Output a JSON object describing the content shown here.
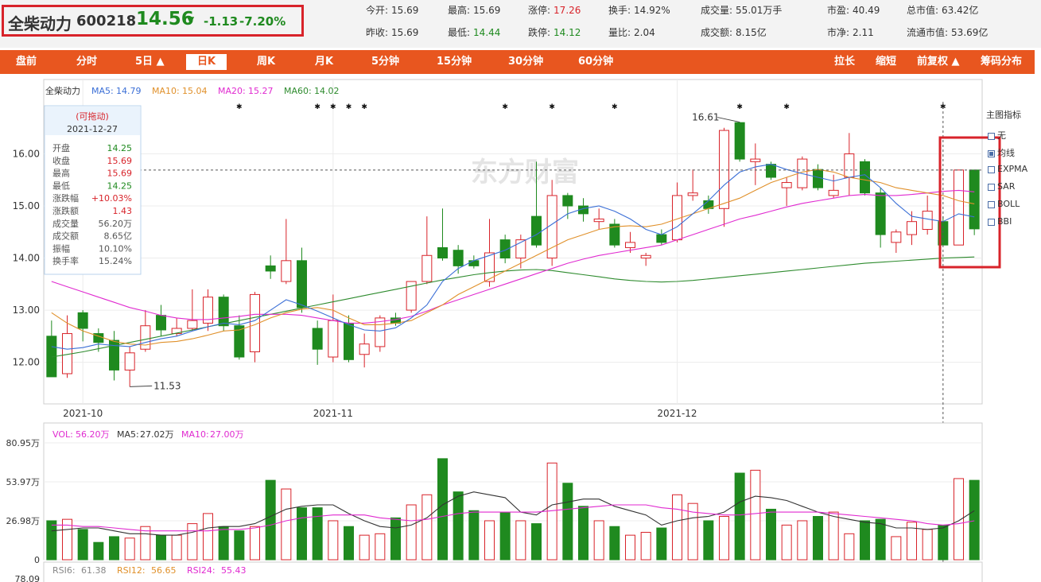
{
  "quote": {
    "name": "全柴动力",
    "code": "600218",
    "price": "14.56",
    "arrow": "▼",
    "change": "-1.13",
    "change_pct": "-7.20%"
  },
  "stats_row1": [
    {
      "label": "今开:",
      "value": "15.69",
      "tone": ""
    },
    {
      "label": "最高:",
      "value": "15.69",
      "tone": ""
    },
    {
      "label": "涨停:",
      "value": "17.26",
      "tone": "up"
    },
    {
      "label": "换手:",
      "value": "14.92%",
      "tone": ""
    },
    {
      "label": "成交量:",
      "value": "55.01万手",
      "tone": ""
    },
    {
      "label": "市盈:",
      "value": "40.49",
      "tone": ""
    },
    {
      "label": "总市值:",
      "value": "63.42亿",
      "tone": ""
    }
  ],
  "stats_row2": [
    {
      "label": "昨收:",
      "value": "15.69",
      "tone": ""
    },
    {
      "label": "最低:",
      "value": "14.44",
      "tone": "dn"
    },
    {
      "label": "跌停:",
      "value": "14.12",
      "tone": "dn"
    },
    {
      "label": "量比:",
      "value": "2.04",
      "tone": ""
    },
    {
      "label": "成交额:",
      "value": "8.15亿",
      "tone": ""
    },
    {
      "label": "市净:",
      "value": "2.11",
      "tone": ""
    },
    {
      "label": "流通市值:",
      "value": "53.69亿",
      "tone": ""
    }
  ],
  "toolbar": {
    "items": [
      "盘前",
      "分时",
      "5日 ▲",
      "日K",
      "周K",
      "月K",
      "5分钟",
      "15分钟",
      "30分钟",
      "60分钟"
    ],
    "active": "日K",
    "right_items": [
      "拉长",
      "缩短",
      "前复权 ▲",
      "筹码分布"
    ]
  },
  "indicator_panel": {
    "title": "主图指标",
    "options": [
      {
        "label": "无",
        "checked": false
      },
      {
        "label": "均线",
        "checked": true
      },
      {
        "label": "EXPMA",
        "checked": false
      },
      {
        "label": "SAR",
        "checked": false
      },
      {
        "label": "BOLL",
        "checked": false
      },
      {
        "label": "BBI",
        "checked": false
      }
    ]
  },
  "tooltip": {
    "title": "(可拖动)",
    "date": "2021-12-27",
    "rows": [
      {
        "label": "开盘",
        "value": "14.25",
        "tone": "dn"
      },
      {
        "label": "收盘",
        "value": "15.69",
        "tone": "up"
      },
      {
        "label": "最高",
        "value": "15.69",
        "tone": "up"
      },
      {
        "label": "最低",
        "value": "14.25",
        "tone": "dn"
      },
      {
        "label": "涨跌幅",
        "value": "+10.03%",
        "tone": "up"
      },
      {
        "label": "涨跌额",
        "value": "1.43",
        "tone": "up"
      },
      {
        "label": "成交量",
        "value": "56.20万",
        "tone": ""
      },
      {
        "label": "成交额",
        "value": "8.65亿",
        "tone": ""
      },
      {
        "label": "振幅",
        "value": "10.10%",
        "tone": ""
      },
      {
        "label": "换手率",
        "value": "15.24%",
        "tone": ""
      }
    ]
  },
  "watermark": "东方财富",
  "colors": {
    "up": "#d8232a",
    "down": "#1f8a1f",
    "ma5": "#3b6fd6",
    "ma10": "#e0902a",
    "ma20": "#e02ad0",
    "ma60": "#2e8b2e",
    "highlight": "#d8232a",
    "toolbar": "#e8561f"
  },
  "chart_data": [
    {
      "type": "candlestick",
      "title": "",
      "legend": [
        {
          "name": "全柴动力",
          "value": ""
        },
        {
          "name": "MA5",
          "value": "14.79"
        },
        {
          "name": "MA10",
          "value": "15.04"
        },
        {
          "name": "MA20",
          "value": "15.27"
        },
        {
          "name": "MA60",
          "value": "14.02"
        }
      ],
      "ylim": [
        11.2,
        17.0
      ],
      "yticks": [
        12.0,
        13.0,
        14.0,
        15.0,
        16.0
      ],
      "ytick_labels": [
        "12.00",
        "13.00",
        "14.00",
        "15.00",
        "16.00"
      ],
      "x_labels": [
        {
          "index": 2,
          "label": "2021-10"
        },
        {
          "index": 18,
          "label": "2021-11"
        },
        {
          "index": 40,
          "label": "2021-12"
        }
      ],
      "grid": true,
      "annotations": [
        {
          "index": 5,
          "value": 11.53,
          "label": "11.53"
        },
        {
          "index": 44,
          "value": 16.61,
          "label": "16.61"
        }
      ],
      "star_markers": [
        12,
        17,
        18,
        19,
        20,
        29,
        32,
        36,
        44,
        47,
        57
      ],
      "crosshair_index": 57,
      "crosshair_price": 15.69,
      "candles": [
        {
          "o": 12.5,
          "c": 11.72,
          "h": 12.8,
          "l": 11.72
        },
        {
          "o": 11.78,
          "c": 12.55,
          "h": 12.9,
          "l": 11.7
        },
        {
          "o": 12.95,
          "c": 12.65,
          "h": 13.0,
          "l": 12.4
        },
        {
          "o": 12.55,
          "c": 12.38,
          "h": 12.65,
          "l": 12.2
        },
        {
          "o": 12.42,
          "c": 11.85,
          "h": 12.6,
          "l": 11.65
        },
        {
          "o": 11.85,
          "c": 12.18,
          "h": 12.3,
          "l": 11.53
        },
        {
          "o": 12.25,
          "c": 12.7,
          "h": 13.0,
          "l": 12.2
        },
        {
          "o": 12.9,
          "c": 12.62,
          "h": 13.1,
          "l": 12.5
        },
        {
          "o": 12.55,
          "c": 12.65,
          "h": 12.85,
          "l": 12.5
        },
        {
          "o": 12.65,
          "c": 12.8,
          "h": 13.4,
          "l": 12.6
        },
        {
          "o": 12.75,
          "c": 13.25,
          "h": 13.4,
          "l": 12.6
        },
        {
          "o": 13.25,
          "c": 12.7,
          "h": 13.3,
          "l": 12.6
        },
        {
          "o": 12.7,
          "c": 12.1,
          "h": 12.9,
          "l": 12.05
        },
        {
          "o": 12.2,
          "c": 13.3,
          "h": 13.35,
          "l": 12.0
        },
        {
          "o": 13.85,
          "c": 13.75,
          "h": 14.05,
          "l": 13.6
        },
        {
          "o": 13.55,
          "c": 13.95,
          "h": 14.75,
          "l": 13.5
        },
        {
          "o": 13.95,
          "c": 13.05,
          "h": 14.2,
          "l": 12.95
        },
        {
          "o": 12.65,
          "c": 12.25,
          "h": 12.8,
          "l": 11.95
        },
        {
          "o": 12.1,
          "c": 12.8,
          "h": 13.3,
          "l": 12.0
        },
        {
          "o": 12.75,
          "c": 12.05,
          "h": 12.9,
          "l": 12.0
        },
        {
          "o": 12.15,
          "c": 12.35,
          "h": 12.55,
          "l": 11.9
        },
        {
          "o": 12.3,
          "c": 12.85,
          "h": 12.9,
          "l": 12.2
        },
        {
          "o": 12.85,
          "c": 12.75,
          "h": 12.95,
          "l": 12.7
        },
        {
          "o": 13.0,
          "c": 13.55,
          "h": 13.55,
          "l": 12.95
        },
        {
          "o": 13.55,
          "c": 14.05,
          "h": 14.8,
          "l": 13.5
        },
        {
          "o": 14.2,
          "c": 14.0,
          "h": 14.95,
          "l": 13.95
        },
        {
          "o": 14.15,
          "c": 13.85,
          "h": 14.25,
          "l": 13.7
        },
        {
          "o": 13.95,
          "c": 13.85,
          "h": 14.05,
          "l": 13.8
        },
        {
          "o": 13.55,
          "c": 14.1,
          "h": 14.75,
          "l": 13.45
        },
        {
          "o": 14.35,
          "c": 14.0,
          "h": 14.45,
          "l": 13.9
        },
        {
          "o": 14.0,
          "c": 14.35,
          "h": 14.45,
          "l": 13.8
        },
        {
          "o": 14.8,
          "c": 14.25,
          "h": 15.85,
          "l": 14.2
        },
        {
          "o": 14.0,
          "c": 15.2,
          "h": 15.5,
          "l": 13.85
        },
        {
          "o": 15.2,
          "c": 15.0,
          "h": 15.25,
          "l": 14.75
        },
        {
          "o": 15.0,
          "c": 14.85,
          "h": 15.15,
          "l": 14.7
        },
        {
          "o": 14.7,
          "c": 14.75,
          "h": 14.95,
          "l": 14.55
        },
        {
          "o": 14.65,
          "c": 14.25,
          "h": 14.75,
          "l": 14.2
        },
        {
          "o": 14.2,
          "c": 14.3,
          "h": 14.5,
          "l": 14.1
        },
        {
          "o": 14.0,
          "c": 14.05,
          "h": 14.1,
          "l": 13.85
        },
        {
          "o": 14.45,
          "c": 14.3,
          "h": 14.55,
          "l": 14.25
        },
        {
          "o": 14.35,
          "c": 15.2,
          "h": 15.45,
          "l": 14.3
        },
        {
          "o": 15.2,
          "c": 15.25,
          "h": 15.7,
          "l": 15.1
        },
        {
          "o": 15.1,
          "c": 14.95,
          "h": 15.2,
          "l": 14.85
        },
        {
          "o": 14.95,
          "c": 16.45,
          "h": 16.5,
          "l": 14.6
        },
        {
          "o": 16.6,
          "c": 15.9,
          "h": 16.61,
          "l": 15.85
        },
        {
          "o": 15.85,
          "c": 15.9,
          "h": 16.2,
          "l": 15.4
        },
        {
          "o": 15.8,
          "c": 15.55,
          "h": 15.85,
          "l": 15.5
        },
        {
          "o": 15.35,
          "c": 15.45,
          "h": 15.55,
          "l": 15.0
        },
        {
          "o": 15.35,
          "c": 15.9,
          "h": 15.95,
          "l": 15.3
        },
        {
          "o": 15.7,
          "c": 15.35,
          "h": 15.8,
          "l": 15.3
        },
        {
          "o": 15.2,
          "c": 15.3,
          "h": 15.6,
          "l": 15.15
        },
        {
          "o": 15.55,
          "c": 16.0,
          "h": 16.4,
          "l": 15.2
        },
        {
          "o": 15.85,
          "c": 15.25,
          "h": 15.9,
          "l": 15.2
        },
        {
          "o": 15.25,
          "c": 14.45,
          "h": 15.35,
          "l": 14.2
        },
        {
          "o": 14.3,
          "c": 14.5,
          "h": 14.55,
          "l": 14.1
        },
        {
          "o": 14.45,
          "c": 14.7,
          "h": 14.9,
          "l": 14.25
        },
        {
          "o": 14.55,
          "c": 14.9,
          "h": 15.2,
          "l": 14.45
        },
        {
          "o": 14.7,
          "c": 14.25,
          "h": 14.8,
          "l": 14.25
        },
        {
          "o": 14.25,
          "c": 15.69,
          "h": 15.69,
          "l": 14.25
        },
        {
          "o": 15.69,
          "c": 14.56,
          "h": 15.69,
          "l": 14.44
        }
      ],
      "ma5": [
        12.3,
        12.25,
        12.28,
        12.35,
        12.32,
        12.3,
        12.38,
        12.45,
        12.5,
        12.6,
        12.68,
        12.75,
        12.72,
        12.8,
        13.0,
        13.2,
        13.1,
        12.98,
        12.85,
        12.72,
        12.62,
        12.6,
        12.66,
        12.85,
        13.1,
        13.55,
        13.8,
        13.95,
        14.05,
        14.15,
        14.3,
        14.45,
        14.65,
        14.85,
        14.95,
        15.0,
        14.9,
        14.75,
        14.55,
        14.45,
        14.6,
        14.85,
        15.1,
        15.4,
        15.65,
        15.75,
        15.8,
        15.7,
        15.62,
        15.55,
        15.48,
        15.55,
        15.6,
        15.35,
        15.05,
        14.8,
        14.75,
        14.7,
        14.85,
        14.79
      ],
      "ma10": [
        12.95,
        12.75,
        12.6,
        12.5,
        12.4,
        12.35,
        12.33,
        12.38,
        12.4,
        12.45,
        12.52,
        12.6,
        12.62,
        12.72,
        12.85,
        12.95,
        13.02,
        13.05,
        13.0,
        12.85,
        12.72,
        12.72,
        12.75,
        12.8,
        12.95,
        13.1,
        13.3,
        13.45,
        13.6,
        13.75,
        13.9,
        14.05,
        14.2,
        14.35,
        14.45,
        14.55,
        14.6,
        14.62,
        14.6,
        14.65,
        14.75,
        14.85,
        14.95,
        15.05,
        15.15,
        15.3,
        15.45,
        15.55,
        15.65,
        15.7,
        15.65,
        15.55,
        15.5,
        15.45,
        15.35,
        15.3,
        15.25,
        15.2,
        15.1,
        15.04
      ],
      "ma20": [
        13.55,
        13.45,
        13.35,
        13.25,
        13.15,
        13.05,
        12.98,
        12.9,
        12.85,
        12.82,
        12.82,
        12.85,
        12.88,
        12.92,
        12.92,
        12.92,
        12.9,
        12.85,
        12.8,
        12.75,
        12.75,
        12.78,
        12.82,
        12.88,
        12.98,
        13.1,
        13.2,
        13.3,
        13.4,
        13.5,
        13.6,
        13.7,
        13.8,
        13.9,
        13.98,
        14.05,
        14.1,
        14.15,
        14.2,
        14.25,
        14.35,
        14.45,
        14.55,
        14.65,
        14.75,
        14.82,
        14.9,
        14.98,
        15.05,
        15.1,
        15.15,
        15.2,
        15.22,
        15.2,
        15.2,
        15.22,
        15.25,
        15.28,
        15.3,
        15.27
      ],
      "ma60": [
        12.1,
        12.15,
        12.2,
        12.26,
        12.32,
        12.38,
        12.44,
        12.5,
        12.56,
        12.62,
        12.68,
        12.74,
        12.8,
        12.86,
        12.92,
        12.98,
        13.04,
        13.1,
        13.16,
        13.22,
        13.28,
        13.34,
        13.4,
        13.46,
        13.52,
        13.58,
        13.63,
        13.68,
        13.72,
        13.75,
        13.77,
        13.78,
        13.76,
        13.72,
        13.68,
        13.64,
        13.6,
        13.57,
        13.55,
        13.54,
        13.55,
        13.57,
        13.6,
        13.63,
        13.66,
        13.69,
        13.72,
        13.75,
        13.78,
        13.81,
        13.84,
        13.87,
        13.9,
        13.92,
        13.94,
        13.96,
        13.98,
        14.0,
        14.01,
        14.02
      ]
    },
    {
      "type": "bar",
      "title": "",
      "legend": [
        {
          "name": "VOL",
          "value": "56.20万"
        },
        {
          "name": "MA5",
          "value": "27.02万"
        },
        {
          "name": "MA10",
          "value": "27.00万"
        }
      ],
      "ylim": [
        0,
        80.95
      ],
      "yticks": [
        0,
        26.98,
        53.97,
        80.95
      ],
      "ytick_labels": [
        "0",
        "26.98万",
        "53.97万",
        "80.95万"
      ],
      "unit": "万",
      "values": [
        27,
        28,
        21,
        12,
        16,
        15,
        23,
        17,
        17,
        25,
        32,
        23,
        20,
        23,
        55,
        49,
        36,
        36,
        27,
        23,
        17,
        18,
        29,
        38,
        45,
        70,
        47,
        34,
        27,
        33,
        27,
        25,
        67,
        53,
        37,
        27,
        23,
        17,
        19,
        22,
        45,
        39,
        27,
        30,
        60,
        62,
        35,
        24,
        27,
        30,
        33,
        18,
        27,
        28,
        16,
        26,
        21,
        24,
        56.2,
        55
      ],
      "ma5": [
        20,
        21,
        22,
        22,
        20,
        18,
        18,
        17,
        17,
        19,
        22,
        23,
        23,
        25,
        30,
        35,
        37,
        38,
        38,
        32,
        27,
        23,
        22,
        24,
        29,
        38,
        44,
        47,
        45,
        43,
        33,
        31,
        38,
        40,
        42,
        42,
        37,
        34,
        31,
        24,
        27,
        29,
        30,
        33,
        40,
        44,
        43,
        41,
        37,
        33,
        30,
        28,
        26,
        25,
        22,
        22,
        21,
        22,
        27,
        34
      ],
      "ma10": [
        24,
        24,
        23,
        23,
        22,
        21,
        20,
        20,
        20,
        20,
        20,
        21,
        21,
        22,
        24,
        27,
        29,
        30,
        31,
        31,
        31,
        29,
        28,
        27,
        28,
        30,
        32,
        33,
        33,
        33,
        33,
        33,
        34,
        35,
        36,
        37,
        38,
        38,
        38,
        36,
        35,
        33,
        32,
        31,
        31,
        32,
        33,
        33,
        33,
        33,
        32,
        31,
        30,
        29,
        28,
        27,
        25,
        24,
        25,
        27
      ],
      "ma_colors": [
        "#333333",
        "#e02ad0"
      ]
    },
    {
      "type": "line",
      "title": "",
      "legend": [
        {
          "name": "RSI6",
          "value": "61.38"
        },
        {
          "name": "RSI12",
          "value": "56.65"
        },
        {
          "name": "RSI24",
          "value": "55.43"
        }
      ],
      "ytick_labels": [
        "78.09"
      ]
    }
  ]
}
